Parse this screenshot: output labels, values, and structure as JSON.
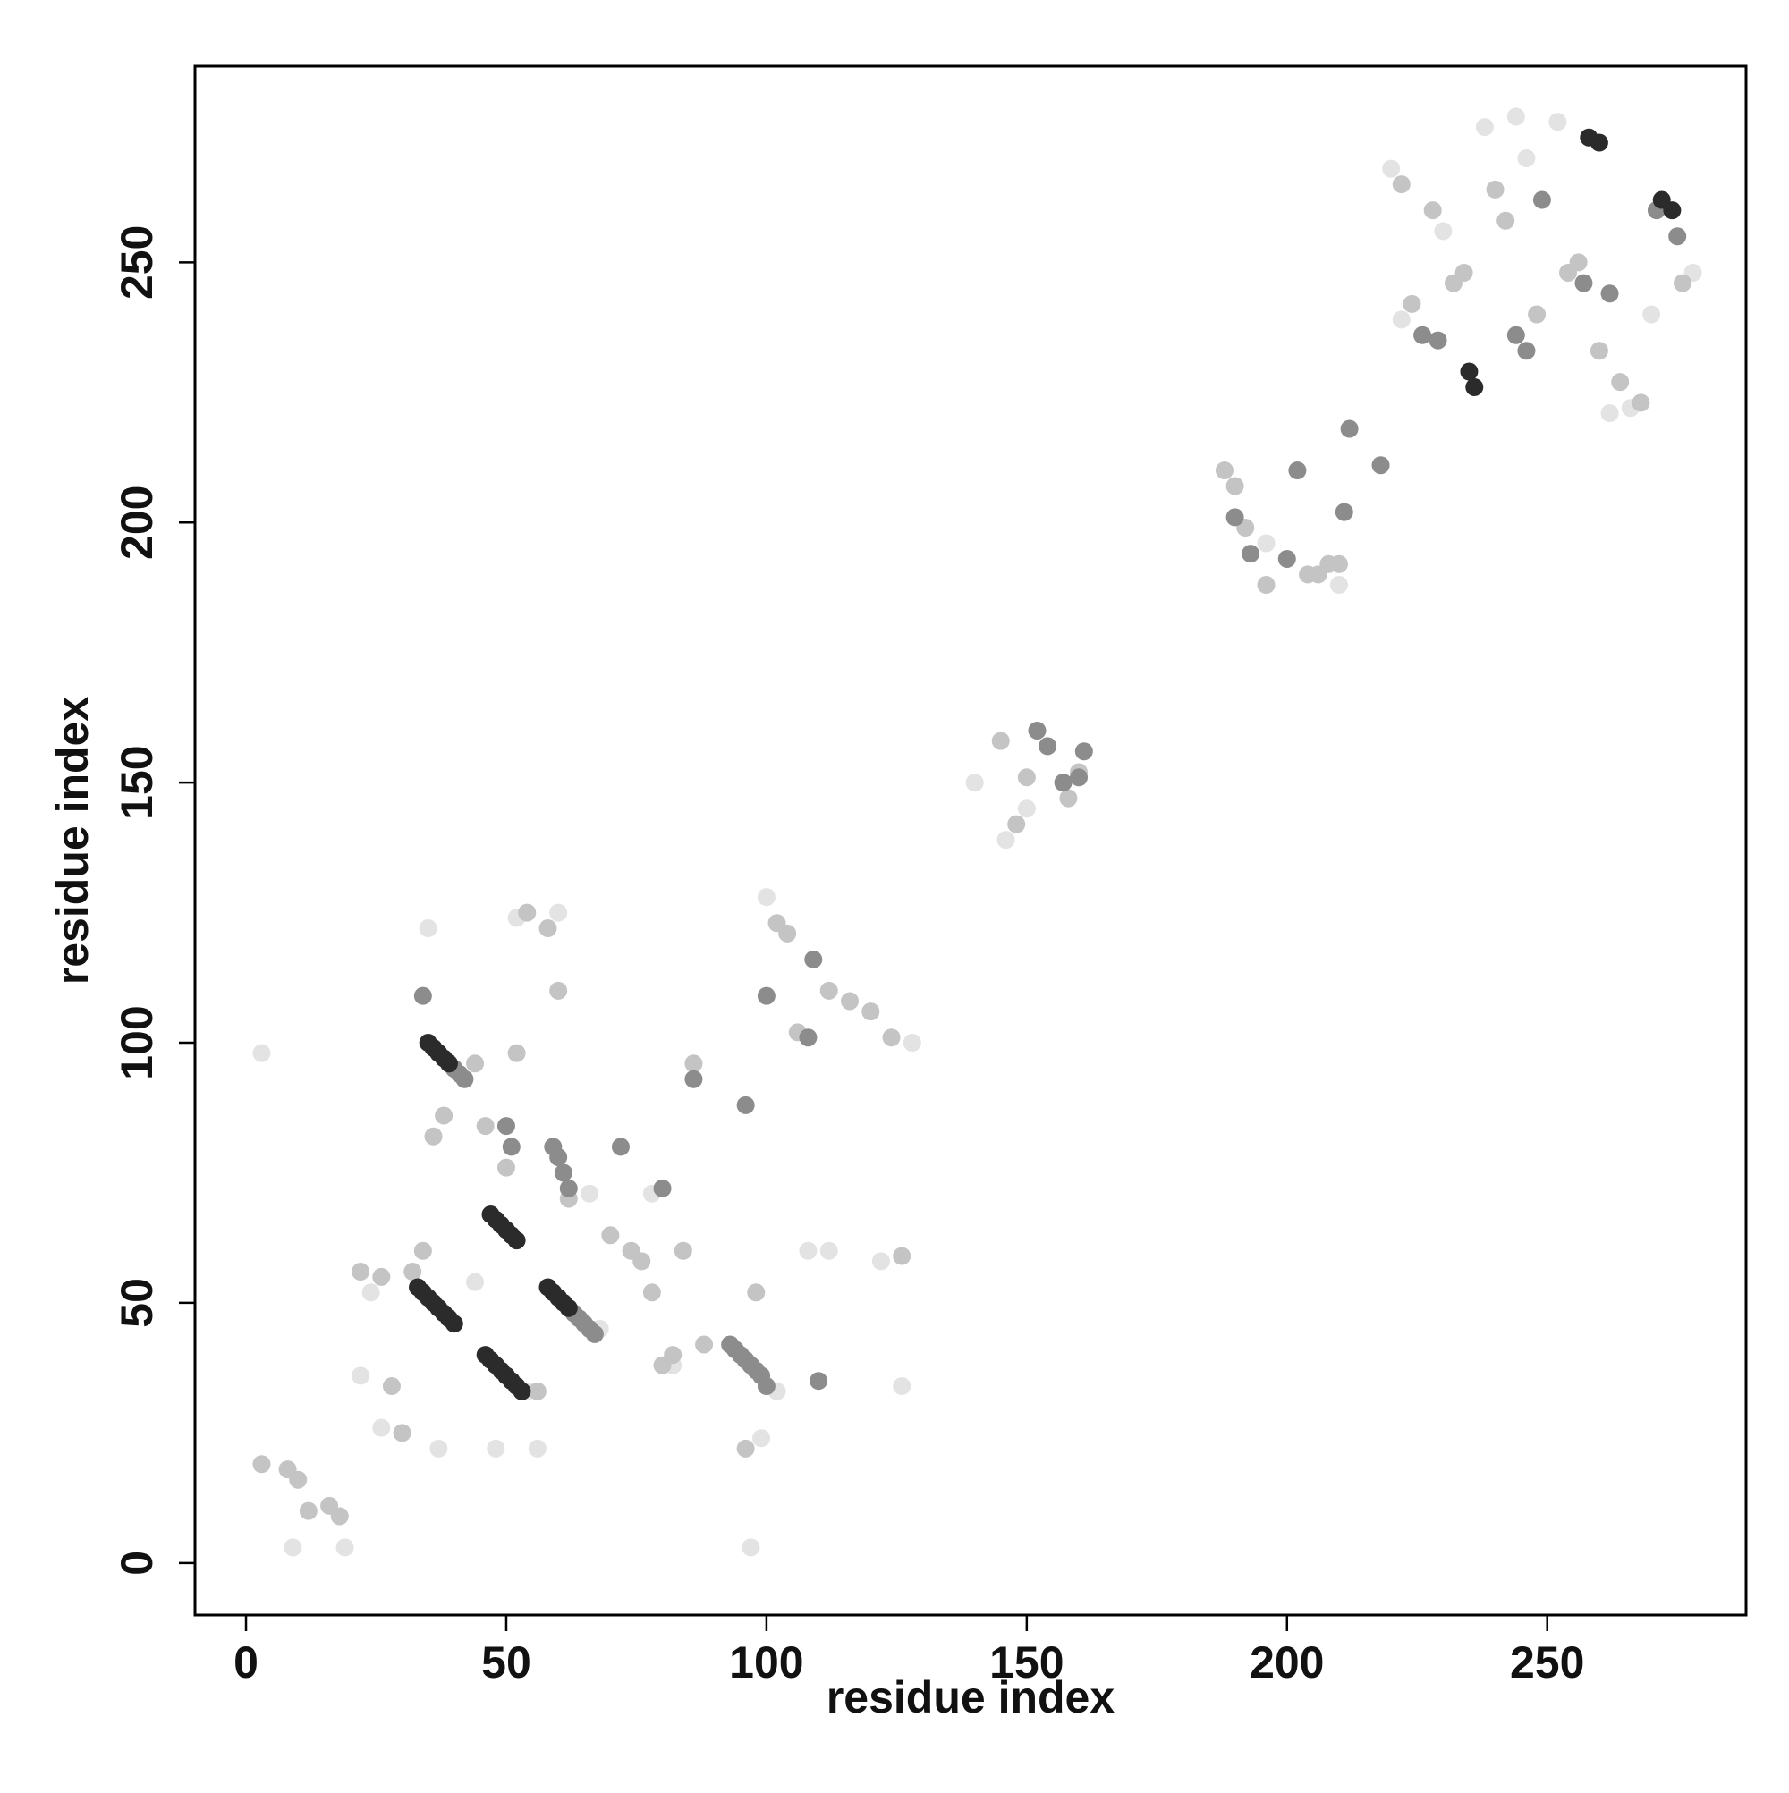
{
  "chart_data": {
    "type": "scatter",
    "xlabel": "residue index",
    "ylabel": "residue index",
    "xlim": [
      -9.8,
      288.2
    ],
    "ylim": [
      -10,
      287.7
    ],
    "xticks": [
      0,
      50,
      100,
      150,
      200,
      250
    ],
    "yticks": [
      0,
      50,
      100,
      150,
      200,
      250
    ],
    "series": [
      {
        "color": "#e3e3e3",
        "x": [
          3,
          9,
          19,
          22,
          24,
          26,
          35,
          37,
          44,
          48,
          52,
          54,
          56,
          60,
          66,
          68,
          78,
          82,
          97,
          99,
          100,
          102,
          108,
          112,
          122,
          126,
          128,
          140,
          146,
          150,
          196,
          210,
          220,
          222,
          230,
          238,
          244,
          246,
          252,
          262,
          266,
          270,
          278
        ],
        "y": [
          98,
          3,
          3,
          36,
          52,
          26,
          122,
          22,
          54,
          22,
          124,
          33,
          22,
          125,
          71,
          45,
          71,
          38,
          3,
          24,
          128,
          33,
          60,
          60,
          58,
          34,
          100,
          150,
          139,
          145,
          196,
          188,
          268,
          239,
          256,
          276,
          278,
          270,
          277,
          221,
          222,
          240,
          248
        ]
      },
      {
        "color": "#c4c4c4",
        "x": [
          3,
          8,
          10,
          12,
          16,
          18,
          22,
          26,
          28,
          30,
          32,
          34,
          36,
          38,
          44,
          46,
          50,
          52,
          54,
          56,
          58,
          60,
          62,
          70,
          74,
          76,
          78,
          80,
          82,
          84,
          86,
          88,
          96,
          98,
          102,
          104,
          106,
          112,
          116,
          120,
          124,
          126,
          145,
          148,
          150,
          158,
          160,
          188,
          190,
          192,
          196,
          204,
          206,
          208,
          210,
          222,
          224,
          228,
          232,
          234,
          240,
          242,
          248,
          254,
          256,
          260,
          264,
          268,
          276
        ],
        "y": [
          19,
          18,
          16,
          10,
          11,
          9,
          56,
          55,
          34,
          25,
          56,
          60,
          82,
          86,
          96,
          84,
          76,
          98,
          125,
          33,
          122,
          110,
          70,
          63,
          60,
          58,
          52,
          38,
          40,
          60,
          96,
          42,
          22,
          52,
          123,
          121,
          102,
          110,
          108,
          106,
          101,
          59,
          158,
          142,
          151,
          147,
          152,
          210,
          207,
          199,
          188,
          190,
          190,
          192,
          192,
          265,
          242,
          260,
          246,
          248,
          264,
          258,
          240,
          248,
          250,
          233,
          227,
          223,
          246
        ]
      },
      {
        "color": "#8c8c8c",
        "x": [
          34,
          40,
          41,
          42,
          63,
          64,
          65,
          66,
          67,
          93,
          94,
          95,
          96,
          97,
          98,
          99,
          100,
          50,
          51,
          59,
          60,
          61,
          62,
          72,
          80,
          86,
          96,
          100,
          108,
          109,
          110,
          152,
          154,
          157,
          160,
          161,
          190,
          193,
          202,
          211,
          212,
          218,
          200,
          226,
          229,
          244,
          246,
          249,
          257,
          262,
          271,
          275
        ],
        "y": [
          109,
          95,
          94,
          93,
          48,
          47,
          46,
          45,
          44,
          42,
          41,
          40,
          39,
          38,
          37,
          36,
          34,
          84,
          80,
          80,
          78,
          75,
          72,
          80,
          72,
          93,
          88,
          109,
          101,
          116,
          35,
          160,
          157,
          150,
          151,
          156,
          201,
          194,
          210,
          202,
          218,
          211,
          193,
          236,
          235,
          236,
          233,
          262,
          246,
          244,
          260,
          255
        ]
      },
      {
        "color": "#2b2b2b",
        "x": [
          33,
          34,
          35,
          36,
          37,
          38,
          39,
          40,
          46,
          47,
          48,
          49,
          50,
          51,
          52,
          53,
          35,
          36,
          37,
          38,
          39,
          47,
          48,
          49,
          50,
          51,
          52,
          58,
          59,
          60,
          61,
          62,
          235,
          236,
          272,
          274,
          258,
          260
        ],
        "y": [
          53,
          52,
          51,
          50,
          49,
          48,
          47,
          46,
          40,
          39,
          38,
          37,
          36,
          35,
          34,
          33,
          100,
          99,
          98,
          97,
          96,
          67,
          66,
          65,
          64,
          63,
          62,
          53,
          52,
          51,
          50,
          49,
          229,
          226,
          262,
          260,
          274,
          273
        ]
      }
    ]
  }
}
